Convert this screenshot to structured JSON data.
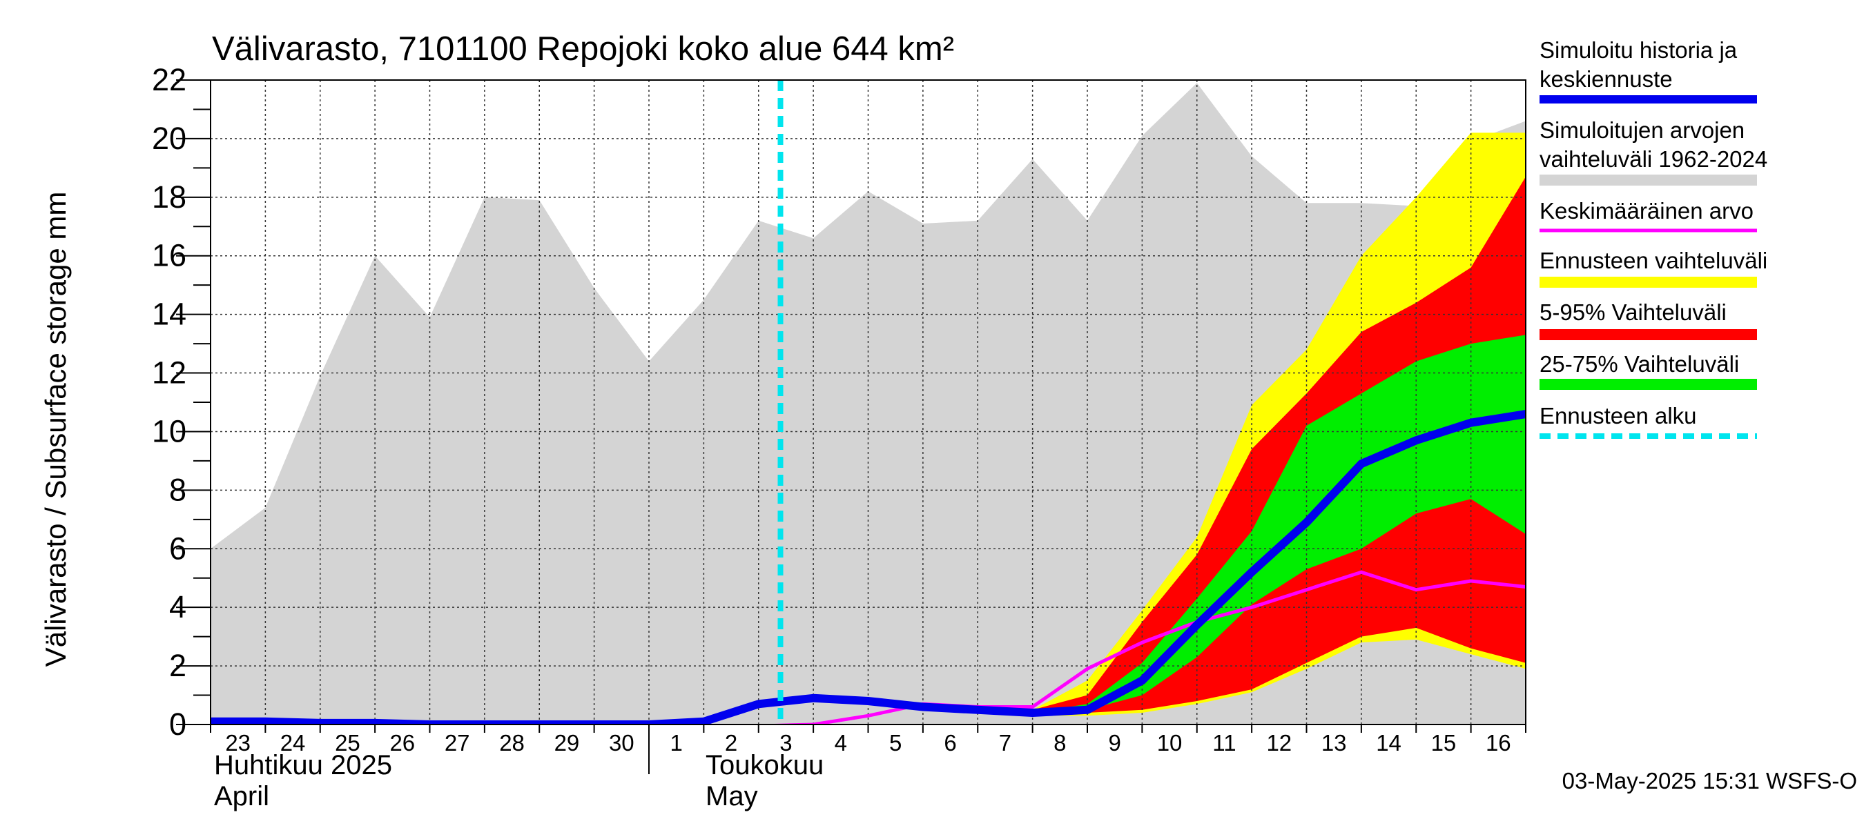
{
  "chart_data": {
    "type": "area",
    "title": "Välivarasto, 7101100 Repojoki koko alue 644 km²",
    "ylabel": "Välivarasto / Subsurface storage  mm",
    "ylim": [
      0,
      22
    ],
    "yticks": [
      0,
      2,
      4,
      6,
      8,
      10,
      12,
      14,
      16,
      18,
      20,
      22
    ],
    "grid": true,
    "legend_position": "right",
    "x_ticks": [
      "23",
      "24",
      "25",
      "26",
      "27",
      "28",
      "29",
      "30",
      "1",
      "2",
      "3",
      "4",
      "5",
      "6",
      "7",
      "8",
      "9",
      "10",
      "11",
      "12",
      "13",
      "14",
      "15",
      "16"
    ],
    "x_start": 23,
    "x_end": 47,
    "month_labels": [
      {
        "x": 23,
        "fi": "Huhtikuu  2025",
        "en": "April"
      },
      {
        "x": 32,
        "fi": "Toukokuu",
        "en": "May"
      }
    ],
    "month_separator_x": 31,
    "forecast_start_x": 33.4,
    "footer": "03-May-2025 15:31 WSFS-O",
    "legend": [
      {
        "label": "Simuloitu historia ja keskiennuste",
        "color": "#0000ee",
        "style": "thick-line"
      },
      {
        "label": "Simuloitujen arvojen vaihteluväli 1962-2024",
        "color": "#d4d4d4",
        "style": "band"
      },
      {
        "label": "Keskimääräinen arvo",
        "color": "#ff00ff",
        "style": "line"
      },
      {
        "label": "Ennusteen vaihteluväli",
        "color": "#ffff00",
        "style": "band"
      },
      {
        "label": "5-95% Vaihteluväli",
        "color": "#ff0000",
        "style": "band"
      },
      {
        "label": "25-75% Vaihteluväli",
        "color": "#00ee00",
        "style": "band"
      },
      {
        "label": "Ennusteen alku",
        "color": "#00e5ee",
        "style": "dashed-line"
      }
    ],
    "series": [
      {
        "name": "Simuloitujen arvojen vaihteluväli 1962-2024",
        "kind": "band",
        "color": "#d4d4d4",
        "x": [
          23,
          24,
          25,
          26,
          27,
          28,
          29,
          30,
          31,
          32,
          33,
          34,
          35,
          36,
          37,
          38,
          39,
          40,
          41,
          42,
          43,
          44,
          45,
          46,
          47
        ],
        "lower": [
          0,
          0,
          0,
          0,
          0,
          0,
          0,
          0,
          0,
          0,
          0,
          0,
          0,
          0,
          0,
          0,
          0,
          0,
          0,
          0,
          0,
          0,
          0,
          0,
          0
        ],
        "upper": [
          6.0,
          7.4,
          11.9,
          16.0,
          13.9,
          18.0,
          17.9,
          14.9,
          12.4,
          14.5,
          17.2,
          16.6,
          18.2,
          17.1,
          17.2,
          19.3,
          17.2,
          20.1,
          21.9,
          19.4,
          17.8,
          17.8,
          17.7,
          19.9,
          20.6
        ]
      },
      {
        "name": "Ennusteen vaihteluväli",
        "kind": "band",
        "color": "#ffff00",
        "x": [
          33.4,
          34,
          35,
          36,
          37,
          38,
          39,
          40,
          41,
          42,
          43,
          44,
          45,
          46,
          47
        ],
        "lower": [
          0.8,
          0.9,
          0.7,
          0.5,
          0.4,
          0.3,
          0.3,
          0.4,
          0.7,
          1.1,
          1.9,
          2.8,
          2.9,
          2.4,
          1.9
        ],
        "upper": [
          0.8,
          1.0,
          0.9,
          0.7,
          0.5,
          0.5,
          1.5,
          3.9,
          6.4,
          10.9,
          12.8,
          16.0,
          18.0,
          20.2,
          20.2
        ]
      },
      {
        "name": "5-95% Vaihteluväli",
        "kind": "band",
        "color": "#ff0000",
        "x": [
          33.4,
          34,
          35,
          36,
          37,
          38,
          39,
          40,
          41,
          42,
          43,
          44,
          45,
          46,
          47
        ],
        "lower": [
          0.8,
          0.9,
          0.7,
          0.5,
          0.4,
          0.4,
          0.4,
          0.5,
          0.8,
          1.2,
          2.1,
          3.0,
          3.3,
          2.6,
          2.1
        ],
        "upper": [
          0.8,
          0.9,
          0.8,
          0.6,
          0.5,
          0.5,
          1.0,
          3.5,
          5.8,
          9.4,
          11.3,
          13.4,
          14.4,
          15.6,
          18.7
        ]
      },
      {
        "name": "25-75% Vaihteluväli",
        "kind": "band",
        "color": "#00ee00",
        "x": [
          33.4,
          34,
          35,
          36,
          37,
          38,
          39,
          40,
          41,
          42,
          43,
          44,
          45,
          46,
          47
        ],
        "lower": [
          0.8,
          0.9,
          0.7,
          0.5,
          0.4,
          0.4,
          0.5,
          1.0,
          2.3,
          4.1,
          5.3,
          6.0,
          7.2,
          7.7,
          6.5
        ],
        "upper": [
          0.8,
          0.9,
          0.8,
          0.6,
          0.5,
          0.4,
          0.7,
          2.1,
          4.3,
          6.6,
          10.2,
          11.3,
          12.4,
          13.0,
          13.3
        ]
      },
      {
        "name": "Keskimääräinen arvo",
        "kind": "line",
        "color": "#ff00ff",
        "x": [
          23,
          24,
          25,
          26,
          27,
          28,
          29,
          30,
          31,
          32,
          33,
          34,
          35,
          36,
          37,
          38,
          39,
          40,
          41,
          42,
          43,
          44,
          45,
          46,
          47
        ],
        "values": [
          0.0,
          -0.05,
          -0.05,
          -0.1,
          -0.1,
          -0.1,
          -0.1,
          -0.1,
          -0.1,
          -0.1,
          -0.05,
          0.0,
          0.3,
          0.7,
          0.6,
          0.6,
          1.9,
          2.8,
          3.5,
          4.0,
          4.6,
          5.2,
          4.6,
          4.9,
          4.7
        ]
      },
      {
        "name": "Simuloitu historia ja keskiennuste",
        "kind": "line",
        "color": "#0000ee",
        "x": [
          23,
          24,
          25,
          26,
          27,
          28,
          29,
          30,
          31,
          32,
          33,
          34,
          35,
          36,
          37,
          38,
          39,
          40,
          41,
          42,
          43,
          44,
          45,
          46,
          47
        ],
        "values": [
          0.1,
          0.1,
          0.05,
          0.05,
          0.0,
          0.0,
          0.0,
          0.0,
          0.0,
          0.1,
          0.7,
          0.9,
          0.8,
          0.6,
          0.5,
          0.4,
          0.5,
          1.5,
          3.4,
          5.2,
          6.9,
          8.9,
          9.7,
          10.3,
          10.6
        ]
      }
    ]
  }
}
